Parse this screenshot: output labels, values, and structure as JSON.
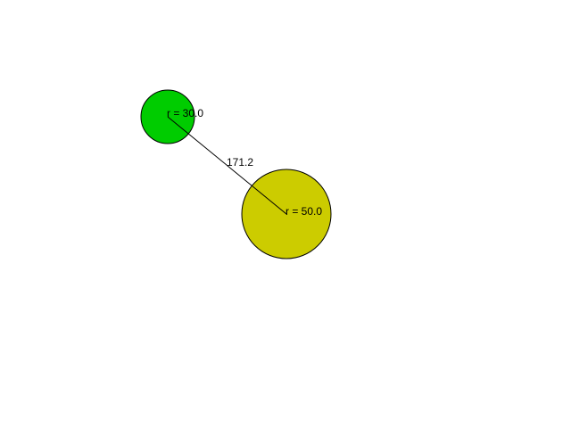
{
  "circles": [
    {
      "id": "circle-1",
      "radius_label": "r = 30.0",
      "fill": "#00cc00",
      "stroke": "#000000"
    },
    {
      "id": "circle-2",
      "radius_label": "r = 50.0",
      "fill": "#cccc00",
      "stroke": "#000000"
    }
  ],
  "connector": {
    "distance_label": "171.2",
    "stroke": "#000000"
  },
  "background": "#ffffff"
}
